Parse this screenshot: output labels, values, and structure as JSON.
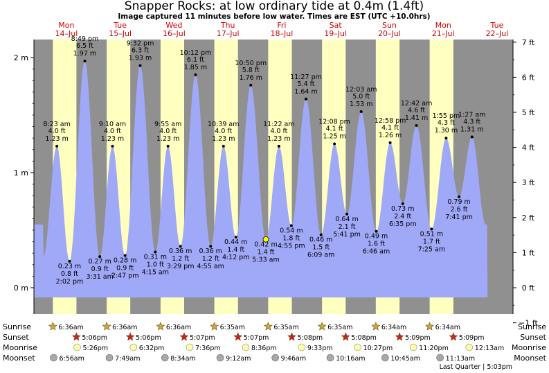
{
  "header": {
    "title": "Snapper Rocks: at low  ordinary tide at 0.4m (1.4ft)",
    "subtitle": "Image captured 11 minutes before low water. Times are EST (UTC +10.0hrs)"
  },
  "chart_data": {
    "type": "area",
    "x_unit": "hours after 00:00 Mon 14-Jul (EST)",
    "y_unit": "m",
    "ylim_m": [
      -0.2,
      2.15
    ],
    "y_ticks_left": [
      "0 m",
      "1 m",
      "2 m"
    ],
    "y_ticks_right": [
      "−1 ft",
      "0 ft",
      "1 ft",
      "2 ft",
      "3 ft",
      "4 ft",
      "5 ft",
      "6 ft",
      "7 ft"
    ],
    "days": [
      {
        "dow": "Mon",
        "date": "14–Jul"
      },
      {
        "dow": "Tue",
        "date": "15–Jul"
      },
      {
        "dow": "Wed",
        "date": "16–Jul"
      },
      {
        "dow": "Thu",
        "date": "17–Jul"
      },
      {
        "dow": "Fri",
        "date": "18–Jul"
      },
      {
        "dow": "Sat",
        "date": "19–Jul"
      },
      {
        "dow": "Sun",
        "date": "20–Jul"
      },
      {
        "dow": "Mon",
        "date": "21–Jul"
      },
      {
        "dow": "Tue",
        "date": "22–Jul"
      }
    ],
    "tides": [
      {
        "type": "high",
        "t": 8.38,
        "time": "8:23 am",
        "ft": "4.0 ft",
        "m": 1.23,
        "mlabel": "1.23 m"
      },
      {
        "type": "low",
        "t": 14.03,
        "time": "2:02 pm",
        "ft": "0.8 ft",
        "m": 0.23,
        "mlabel": "0.23 m"
      },
      {
        "type": "high",
        "t": 20.82,
        "time": "8:49 pm",
        "ft": "6.5 ft",
        "m": 1.97,
        "mlabel": "1.97 m"
      },
      {
        "type": "low",
        "t": 27.52,
        "time": "3:31 am",
        "ft": "0.9 ft",
        "m": 0.27,
        "mlabel": "0.27 m"
      },
      {
        "type": "high",
        "t": 33.17,
        "time": "9:10 am",
        "ft": "4.0 ft",
        "m": 1.23,
        "mlabel": "1.23 m"
      },
      {
        "type": "low",
        "t": 38.78,
        "time": "2:47 pm",
        "ft": "0.9 ft",
        "m": 0.28,
        "mlabel": "0.28 m"
      },
      {
        "type": "high",
        "t": 45.53,
        "time": "9:32 pm",
        "ft": "6.3 ft",
        "m": 1.93,
        "mlabel": "1.93 m"
      },
      {
        "type": "low",
        "t": 52.25,
        "time": "4:15 am",
        "ft": "1.0 ft",
        "m": 0.31,
        "mlabel": "0.31 m"
      },
      {
        "type": "high",
        "t": 57.92,
        "time": "9:55 am",
        "ft": "4.0 ft",
        "m": 1.23,
        "mlabel": "1.23 m"
      },
      {
        "type": "low",
        "t": 63.48,
        "time": "3:29 pm",
        "ft": "1.2 ft",
        "m": 0.36,
        "mlabel": "0.36 m"
      },
      {
        "type": "high",
        "t": 70.2,
        "time": "10:12 pm",
        "ft": "6.1 ft",
        "m": 1.85,
        "mlabel": "1.85 m"
      },
      {
        "type": "low",
        "t": 76.92,
        "time": "4:55 am",
        "ft": "1.2 ft",
        "m": 0.36,
        "mlabel": "0.36 m"
      },
      {
        "type": "high",
        "t": 82.65,
        "time": "10:39 am",
        "ft": "4.0 ft",
        "m": 1.23,
        "mlabel": "1.23 m"
      },
      {
        "type": "low",
        "t": 88.2,
        "time": "4:12 pm",
        "ft": "1.4 ft",
        "m": 0.44,
        "mlabel": "0.44 m"
      },
      {
        "type": "high",
        "t": 94.83,
        "time": "10:50 pm",
        "ft": "5.8 ft",
        "m": 1.76,
        "mlabel": "1.76 m"
      },
      {
        "type": "low",
        "t": 101.55,
        "time": "5:33 am",
        "ft": "1.4 ft",
        "m": 0.42,
        "mlabel": "0.42 m",
        "now": true
      },
      {
        "type": "high",
        "t": 107.37,
        "time": "11:22 am",
        "ft": "4.0 ft",
        "m": 1.23,
        "mlabel": "1.23 m"
      },
      {
        "type": "low",
        "t": 112.92,
        "time": "4:55 pm",
        "ft": "1.8 ft",
        "m": 0.54,
        "mlabel": "0.54 m"
      },
      {
        "type": "high",
        "t": 119.45,
        "time": "11:27 pm",
        "ft": "5.4 ft",
        "m": 1.64,
        "mlabel": "1.64 m"
      },
      {
        "type": "low",
        "t": 126.15,
        "time": "6:09 am",
        "ft": "1.5 ft",
        "m": 0.46,
        "mlabel": "0.46 m"
      },
      {
        "type": "high",
        "t": 132.13,
        "time": "12:08 pm",
        "ft": "4.1 ft",
        "m": 1.25,
        "mlabel": "1.25 m"
      },
      {
        "type": "low",
        "t": 137.68,
        "time": "5:41 pm",
        "ft": "2.1 ft",
        "m": 0.64,
        "mlabel": "0.64 m"
      },
      {
        "type": "high",
        "t": 144.05,
        "time": "12:03 am",
        "ft": "5.0 ft",
        "m": 1.53,
        "mlabel": "1.53 m"
      },
      {
        "type": "low",
        "t": 150.77,
        "time": "6:46 am",
        "ft": "1.6 ft",
        "m": 0.49,
        "mlabel": "0.49 m"
      },
      {
        "type": "high",
        "t": 156.97,
        "time": "12:58 pm",
        "ft": "4.1 ft",
        "m": 1.26,
        "mlabel": "1.26 m"
      },
      {
        "type": "low",
        "t": 162.58,
        "time": "6:35 pm",
        "ft": "2.4 ft",
        "m": 0.73,
        "mlabel": "0.73 m"
      },
      {
        "type": "high",
        "t": 168.7,
        "time": "12:42 am",
        "ft": "4.6 ft",
        "m": 1.41,
        "mlabel": "1.41 m"
      },
      {
        "type": "low",
        "t": 175.42,
        "time": "7:25 am",
        "ft": "1.7 ft",
        "m": 0.51,
        "mlabel": "0.51 m"
      },
      {
        "type": "high",
        "t": 181.92,
        "time": "1:55 pm",
        "ft": "4.3 ft",
        "m": 1.3,
        "mlabel": "1.30 m"
      },
      {
        "type": "low",
        "t": 187.68,
        "time": "7:41 pm",
        "ft": "2.6 ft",
        "m": 0.79,
        "mlabel": "0.79 m"
      },
      {
        "type": "high",
        "t": 193.45,
        "time": "1:27 am",
        "ft": "4.3 ft",
        "m": 1.31,
        "mlabel": "1.31 m"
      }
    ],
    "sun": [
      {
        "rise": "6:36am",
        "set": "5:06pm",
        "rise_h": 6.6,
        "set_h": 17.1
      },
      {
        "rise": "6:36am",
        "set": "5:06pm",
        "rise_h": 6.6,
        "set_h": 17.1
      },
      {
        "rise": "6:36am",
        "set": "5:07pm",
        "rise_h": 6.6,
        "set_h": 17.12
      },
      {
        "rise": "6:35am",
        "set": "5:07pm",
        "rise_h": 6.58,
        "set_h": 17.12
      },
      {
        "rise": "6:35am",
        "set": "5:08pm",
        "rise_h": 6.58,
        "set_h": 17.13
      },
      {
        "rise": "6:35am",
        "set": "5:08pm",
        "rise_h": 6.58,
        "set_h": 17.13
      },
      {
        "rise": "6:34am",
        "set": "5:09pm",
        "rise_h": 6.57,
        "set_h": 17.15
      },
      {
        "rise": "6:34am",
        "set": "5:09pm",
        "rise_h": 6.57,
        "set_h": 17.15
      }
    ],
    "moonrise": [
      "5:26pm",
      "6:32pm",
      "7:36pm",
      "8:36pm",
      "9:33pm",
      "10:27pm",
      "11:20pm",
      "12:13am"
    ],
    "moonset": [
      "6:56am",
      "7:49am",
      "8:34am",
      "9:12am",
      "9:46am",
      "10:16am",
      "10:45am",
      "11:13am"
    ],
    "rows": {
      "sunrise": "Sunrise",
      "sunset": "Sunset",
      "moonrise": "Moonrise",
      "moonset": "Moonset"
    },
    "moon_phase": "Last Quarter | 5:03pm",
    "colors": {
      "night": "#909090",
      "day": "#ffffc0",
      "water": "#a0a8f8",
      "day_label": "#cc0000",
      "sun_icon": "#c8a838",
      "sunset_icon": "#cc2222",
      "moonrise_icon": "#ffffa8",
      "moonset_icon": "#a8a8a8"
    }
  }
}
